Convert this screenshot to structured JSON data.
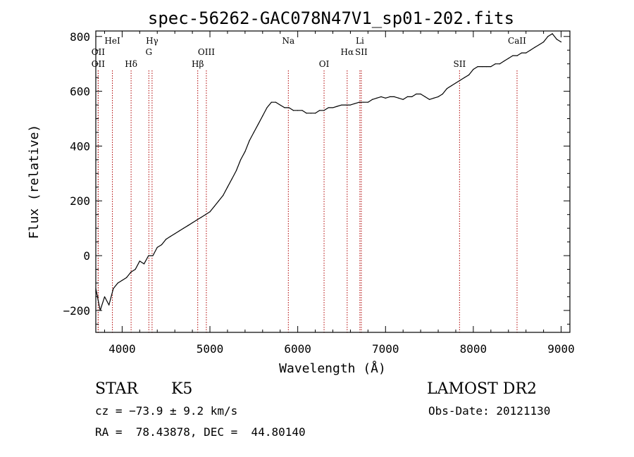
{
  "chart_data": {
    "type": "line",
    "title": "spec-56262-GAC078N47V1_sp01-202.fits",
    "xlabel": "Wavelength (Å)",
    "ylabel": "Flux (relative)",
    "xlim": [
      3700,
      9100
    ],
    "ylim": [
      -280,
      820
    ],
    "xticks": [
      4000,
      5000,
      6000,
      7000,
      8000,
      9000
    ],
    "yticks": [
      -200,
      0,
      200,
      400,
      600,
      800
    ],
    "grid": false,
    "series_color": "#000000",
    "line_marker_color": "#b00000",
    "series": [
      {
        "x": [
          3700,
          3750,
          3800,
          3850,
          3900,
          3950,
          4000,
          4050,
          4100,
          4150,
          4200,
          4250,
          4300,
          4350,
          4400,
          4450,
          4500,
          4550,
          4600,
          4650,
          4700,
          4750,
          4800,
          4850,
          4900,
          4950,
          5000,
          5050,
          5100,
          5150,
          5200,
          5250,
          5300,
          5350,
          5400,
          5450,
          5500,
          5550,
          5600,
          5650,
          5700,
          5750,
          5800,
          5850,
          5900,
          5950,
          6000,
          6050,
          6100,
          6150,
          6200,
          6250,
          6300,
          6350,
          6400,
          6450,
          6500,
          6550,
          6600,
          6650,
          6700,
          6750,
          6800,
          6850,
          6900,
          6950,
          7000,
          7050,
          7100,
          7150,
          7200,
          7250,
          7300,
          7350,
          7400,
          7450,
          7500,
          7550,
          7600,
          7650,
          7700,
          7750,
          7800,
          7850,
          7900,
          7950,
          8000,
          8050,
          8100,
          8150,
          8200,
          8250,
          8300,
          8350,
          8400,
          8450,
          8500,
          8550,
          8600,
          8650,
          8700,
          8750,
          8800,
          8850,
          8900,
          8950,
          9000
        ],
        "y": [
          -120,
          -200,
          -150,
          -180,
          -120,
          -100,
          -90,
          -80,
          -60,
          -50,
          -20,
          -30,
          0,
          0,
          30,
          40,
          60,
          70,
          80,
          90,
          100,
          110,
          120,
          130,
          140,
          150,
          160,
          180,
          200,
          220,
          250,
          280,
          310,
          350,
          380,
          420,
          450,
          480,
          510,
          540,
          560,
          560,
          550,
          540,
          540,
          530,
          530,
          530,
          520,
          520,
          520,
          530,
          530,
          540,
          540,
          545,
          550,
          550,
          550,
          555,
          560,
          560,
          560,
          570,
          575,
          580,
          575,
          580,
          580,
          575,
          570,
          580,
          580,
          590,
          590,
          580,
          570,
          575,
          580,
          590,
          610,
          620,
          630,
          640,
          650,
          660,
          680,
          690,
          690,
          690,
          690,
          700,
          700,
          710,
          720,
          730,
          730,
          740,
          740,
          750,
          760,
          770,
          780,
          800,
          810,
          790,
          780
        ]
      }
    ],
    "line_markers": [
      {
        "x": 3727,
        "label": "OII",
        "row": 2
      },
      {
        "x": 3727,
        "label": "OII",
        "row": 3
      },
      {
        "x": 3889,
        "label": "HeI",
        "row": 1
      },
      {
        "x": 4102,
        "label": "Hδ",
        "row": 3
      },
      {
        "x": 4304,
        "label": "G",
        "row": 2
      },
      {
        "x": 4341,
        "label": "Hγ",
        "row": 1
      },
      {
        "x": 4861,
        "label": "Hβ",
        "row": 3
      },
      {
        "x": 4959,
        "label": "OIII",
        "row": 2
      },
      {
        "x": 5893,
        "label": "Na",
        "row": 1
      },
      {
        "x": 6300,
        "label": "OI",
        "row": 3
      },
      {
        "x": 6563,
        "label": "Hα",
        "row": 2
      },
      {
        "x": 6708,
        "label": "Li",
        "row": 1
      },
      {
        "x": 6724,
        "label": "SII",
        "row": 2
      },
      {
        "x": 7843,
        "label": "SII",
        "row": 3
      },
      {
        "x": 8498,
        "label": "CaII",
        "row": 1
      }
    ]
  },
  "info": {
    "class_label": "STAR",
    "subclass": "K5",
    "survey": "LAMOST DR2",
    "cz": "cz = −73.9 ± 9.2 km/s",
    "obs_date": "Obs-Date: 20121130",
    "coords": "RA =  78.43878, DEC =  44.80140"
  }
}
